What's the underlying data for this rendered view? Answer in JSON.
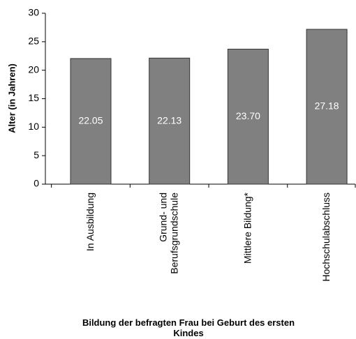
{
  "chart_data": {
    "type": "bar",
    "x_label": "Bildung der befragten Frau bei Geburt des ersten Kindes",
    "y_label": "Alter (in Jahren)",
    "categories": [
      "In Ausbildung",
      "Grund- und\nBerufsgrundschule",
      "Mittlere Bildung*",
      "Hochschulabschluss"
    ],
    "values": [
      22.05,
      22.13,
      23.7,
      27.18
    ],
    "value_labels": [
      "22.05",
      "22.13",
      "23.70",
      "27.18"
    ],
    "color": "#808080",
    "ylim": [
      0,
      30
    ],
    "yticks": [
      0,
      5,
      10,
      15,
      20,
      25,
      30
    ],
    "grid": false
  }
}
